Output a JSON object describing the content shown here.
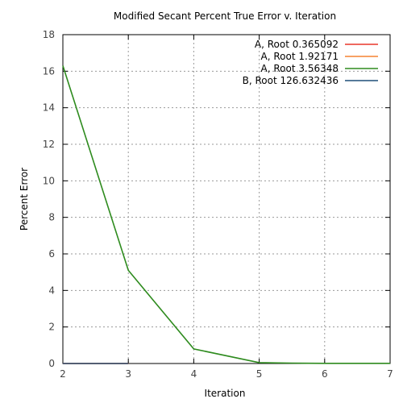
{
  "chart_data": {
    "type": "line",
    "title": "Modified Secant Percent True Error v. Iteration",
    "xlabel": "Iteration",
    "ylabel": "Percent Error",
    "xlim": [
      2,
      7
    ],
    "ylim": [
      0,
      18
    ],
    "xticks": [
      2,
      3,
      4,
      5,
      6,
      7
    ],
    "yticks": [
      0,
      2,
      4,
      6,
      8,
      10,
      12,
      14,
      16,
      18
    ],
    "grid": true,
    "legend_position": "top-right",
    "series": [
      {
        "name": "A, Root 0.365092",
        "color": "#e8372a",
        "x": [
          2,
          3
        ],
        "y": [
          0,
          0
        ]
      },
      {
        "name": "A, Root 1.92171",
        "color": "#f58231",
        "x": [
          2,
          3
        ],
        "y": [
          0,
          0
        ]
      },
      {
        "name": "A, Root 3.56348",
        "color": "#2e8b1e",
        "x": [
          2,
          3,
          4,
          5,
          5.5,
          6,
          7
        ],
        "y": [
          16.3,
          5.1,
          0.8,
          0.05,
          0.02,
          0.01,
          0.01
        ]
      },
      {
        "name": "B, Root 126.632436",
        "color": "#1f4e79",
        "x": [
          2,
          3
        ],
        "y": [
          0,
          0
        ]
      }
    ]
  }
}
